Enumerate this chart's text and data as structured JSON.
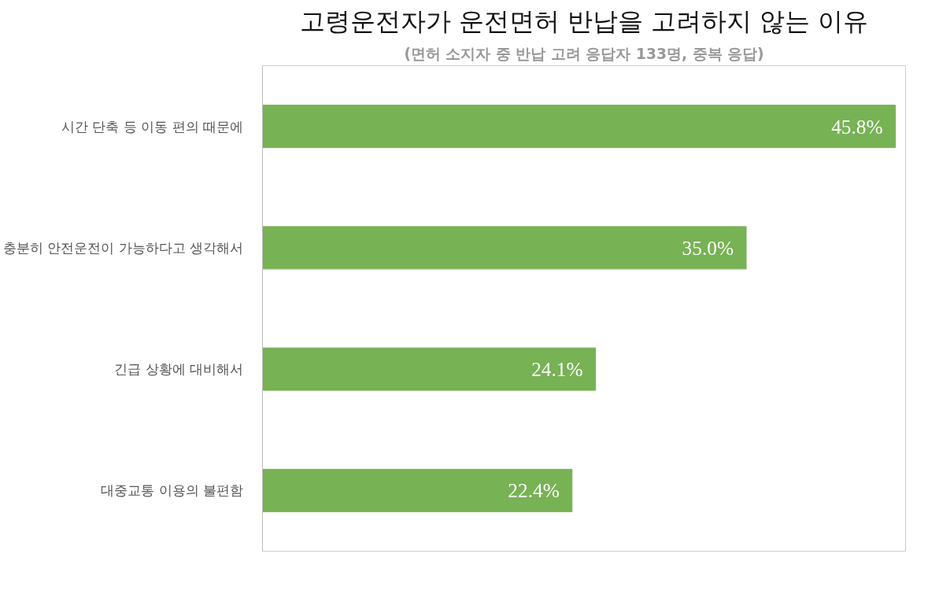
{
  "chart_data": {
    "type": "bar",
    "orientation": "horizontal",
    "title": "고령운전자가 운전면허 반납을 고려하지 않는 이유",
    "subtitle": "(면허 소지자 중 반납 고려 응답자 133명, 중복 응답)",
    "categories": [
      "시간 단축 등 이동 편의 때문에",
      "충분히 안전운전이 가능하다고 생각해서",
      "긴급 상황에 대비해서",
      "대중교통 이용의 불편함"
    ],
    "values": [
      45.8,
      35.0,
      24.1,
      22.4
    ],
    "value_labels": [
      "45.8%",
      "35.0%",
      "24.1%",
      "22.4%"
    ],
    "color": "#77b254",
    "grid": false
  }
}
